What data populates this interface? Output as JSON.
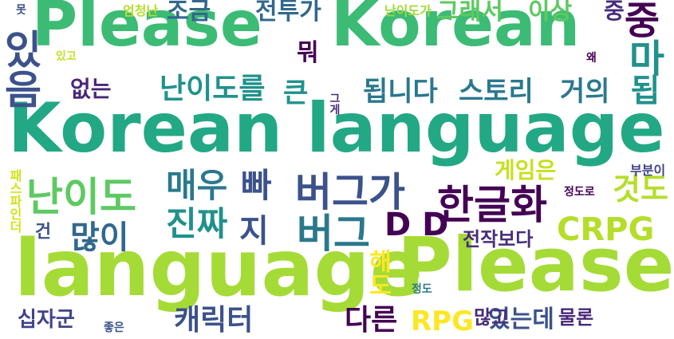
{
  "words": [
    {
      "text": "Please",
      "color": "#3cbb75"
    },
    {
      "text": "Korean",
      "color": "#3cbb75"
    },
    {
      "text": "Korean language",
      "color": "#22a884"
    },
    {
      "text": "language",
      "color": "#a5db36"
    },
    {
      "text": "Please",
      "color": "#a5db36"
    },
    {
      "text": "버그가",
      "color": "#3b528b"
    },
    {
      "text": "버그",
      "color": "#2a788e"
    },
    {
      "text": "난이도",
      "color": "#5ec962"
    },
    {
      "text": "한글화",
      "color": "#440154"
    },
    {
      "text": "매우",
      "color": "#2a788e"
    },
    {
      "text": "진짜",
      "color": "#21918c"
    },
    {
      "text": "빠",
      "color": "#3b528b"
    },
    {
      "text": "난이도를",
      "color": "#21918c"
    },
    {
      "text": "됩니다",
      "color": "#2a788e"
    },
    {
      "text": "스토리",
      "color": "#2a788e"
    },
    {
      "text": "거의",
      "color": "#2a788e"
    },
    {
      "text": "CRPG",
      "color": "#b5de2b"
    },
    {
      "text": "많이",
      "color": "#31688e"
    },
    {
      "text": "지",
      "color": "#3b528b"
    },
    {
      "text": "캐릭터",
      "color": "#3b528b"
    },
    {
      "text": "다른",
      "color": "#440154"
    },
    {
      "text": "RPG",
      "color": "#fde725"
    },
    {
      "text": "있는데",
      "color": "#3b528b"
    },
    {
      "text": "많고",
      "color": "#472d7b"
    },
    {
      "text": "물론",
      "color": "#482878"
    },
    {
      "text": "십자군",
      "color": "#414487"
    },
    {
      "text": "것도",
      "color": "#b5de2b"
    },
    {
      "text": "게임은",
      "color": "#c8e020"
    },
    {
      "text": "전작보다",
      "color": "#472d7b"
    },
    {
      "text": "이상",
      "color": "#5ec962"
    },
    {
      "text": "그래서",
      "color": "#5ec962"
    },
    {
      "text": "전투가",
      "color": "#31688e"
    },
    {
      "text": "조금",
      "color": "#31688e"
    },
    {
      "text": "중",
      "color": "#472d7b"
    },
    {
      "text": "중",
      "color": "#440154"
    },
    {
      "text": "마",
      "color": "#21918c"
    },
    {
      "text": "됩",
      "color": "#21918c"
    },
    {
      "text": "뭐",
      "color": "#440154"
    },
    {
      "text": "큰",
      "color": "#21918c"
    },
    {
      "text": "없는",
      "color": "#482878"
    },
    {
      "text": "있음",
      "color": "#3b528b"
    },
    {
      "text": "패스파인더",
      "color": "#d2e21b"
    },
    {
      "text": "건",
      "color": "#3b528b"
    },
    {
      "text": "엄청난",
      "color": "#b5de2b"
    },
    {
      "text": "난이도가",
      "color": "#a0da39"
    },
    {
      "text": "있고",
      "color": "#c2df23"
    },
    {
      "text": "왜",
      "color": "#440154"
    },
    {
      "text": "그게",
      "color": "#472d7b"
    },
    {
      "text": "부분이",
      "color": "#414487"
    },
    {
      "text": "정도로",
      "color": "#440154"
    },
    {
      "text": "정도",
      "color": "#2a788e"
    },
    {
      "text": "좋은",
      "color": "#3b528b"
    },
    {
      "text": "해도",
      "color": "#fde725"
    },
    {
      "text": "D D",
      "color": "#440154"
    },
    {
      "text": "못",
      "color": "#3b528b"
    }
  ]
}
